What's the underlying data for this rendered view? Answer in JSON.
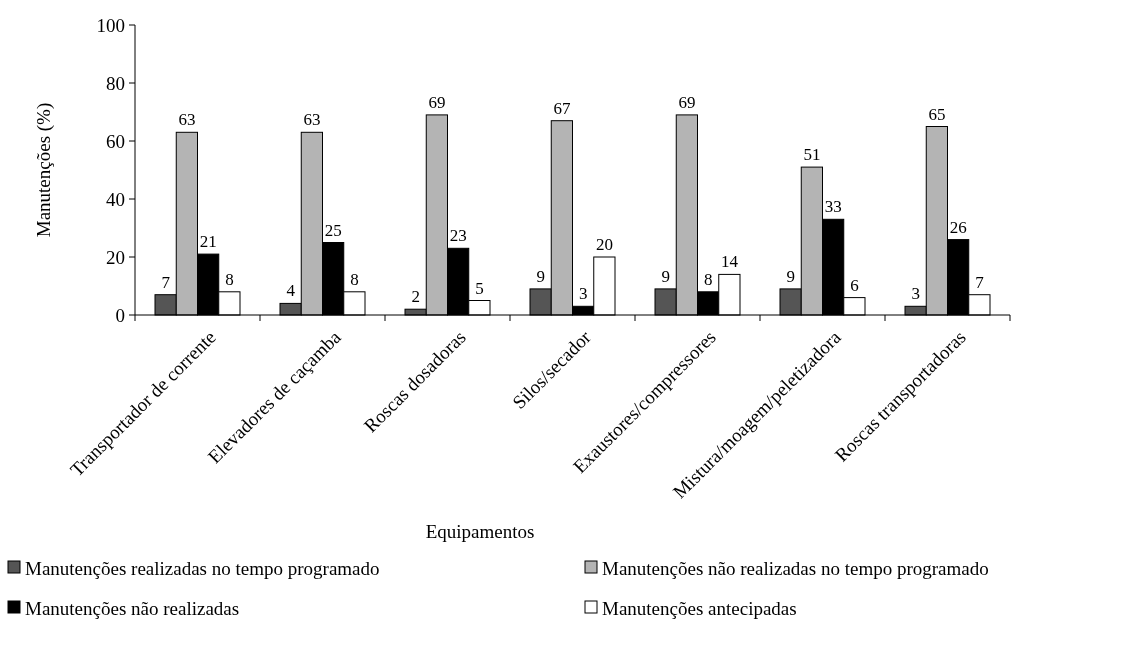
{
  "chart_data": {
    "type": "bar",
    "xlabel": "Equipamentos",
    "ylabel": "Manutenções (%)",
    "categories": [
      "Transportador de corrente",
      "Elevadores de caçamba",
      "Roscas dosadoras",
      "Silos/secador",
      "Exaustores/compressores",
      "Mistura/moagem/peletizadora",
      "Roscas transportadoras"
    ],
    "series": [
      {
        "name": "Manutenções realizadas no tempo programado",
        "color": "#555555",
        "values": [
          7,
          4,
          2,
          9,
          9,
          9,
          3
        ]
      },
      {
        "name": "Manutenções não realizadas no tempo programado",
        "color": "#b4b4b4",
        "values": [
          63,
          63,
          69,
          67,
          69,
          51,
          65
        ]
      },
      {
        "name": "Manutenções não realizadas",
        "color": "#000000",
        "values": [
          21,
          25,
          23,
          3,
          8,
          33,
          26
        ]
      },
      {
        "name": "Manutenções antecipadas",
        "color": "#ffffff",
        "values": [
          8,
          8,
          5,
          20,
          14,
          6,
          7
        ]
      }
    ],
    "ylim": [
      0,
      100
    ],
    "yticks": [
      0,
      20,
      40,
      60,
      80,
      100
    ],
    "data_labels": true,
    "legend": "bottom",
    "grid": false
  }
}
